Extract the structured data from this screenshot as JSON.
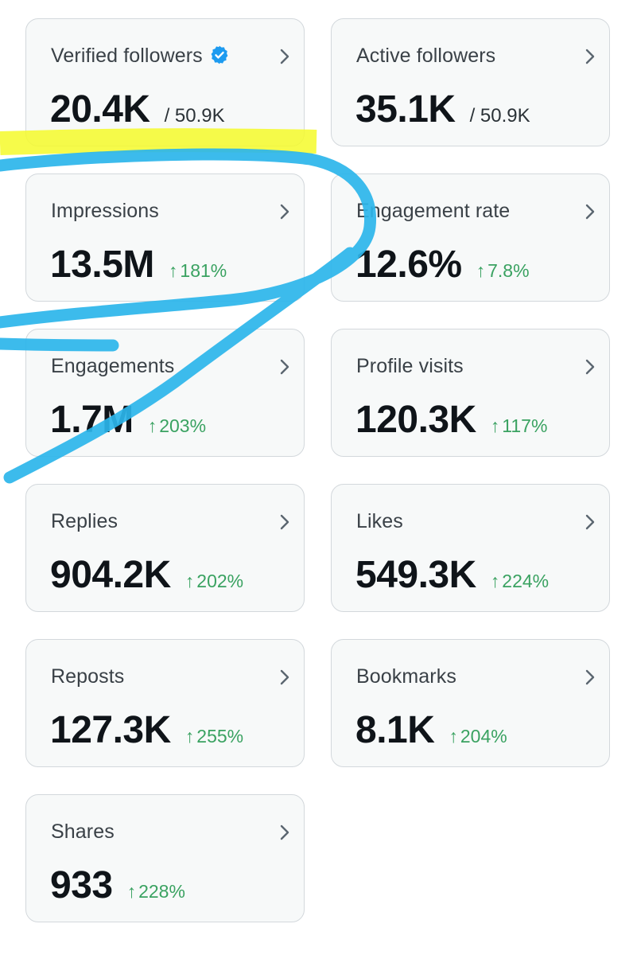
{
  "cards": [
    {
      "id": "verified-followers",
      "label": "Verified followers",
      "value": "20.4K",
      "total": "/ 50.9K",
      "verified": true
    },
    {
      "id": "active-followers",
      "label": "Active followers",
      "value": "35.1K",
      "total": "/ 50.9K"
    },
    {
      "id": "impressions",
      "label": "Impressions",
      "value": "13.5M",
      "arrow": "↑",
      "change": "181%"
    },
    {
      "id": "engagement-rate",
      "label": "Engagement rate",
      "value": "12.6%",
      "arrow": "↑",
      "change": "7.8%"
    },
    {
      "id": "engagements",
      "label": "Engagements",
      "value": "1.7M",
      "arrow": "↑",
      "change": "203%"
    },
    {
      "id": "profile-visits",
      "label": "Profile visits",
      "value": "120.3K",
      "arrow": "↑",
      "change": "117%"
    },
    {
      "id": "replies",
      "label": "Replies",
      "value": "904.2K",
      "arrow": "↑",
      "change": "202%"
    },
    {
      "id": "likes",
      "label": "Likes",
      "value": "549.3K",
      "arrow": "↑",
      "change": "224%"
    },
    {
      "id": "reposts",
      "label": "Reposts",
      "value": "127.3K",
      "arrow": "↑",
      "change": "255%"
    },
    {
      "id": "bookmarks",
      "label": "Bookmarks",
      "value": "8.1K",
      "arrow": "↑",
      "change": "204%"
    },
    {
      "id": "shares",
      "label": "Shares",
      "value": "933",
      "arrow": "↑",
      "change": "228%"
    }
  ],
  "icons": {
    "chevron": "chevron-right-icon",
    "verified": "verified-badge-icon"
  },
  "colors": {
    "card_background": "#f7f9f9",
    "card_border": "#d3d8dc",
    "positive_change": "#3aa261",
    "verified_badge": "#1d9bf0",
    "highlighter_yellow": "#f4fa2a",
    "pen_blue": "#2bb5ea"
  }
}
